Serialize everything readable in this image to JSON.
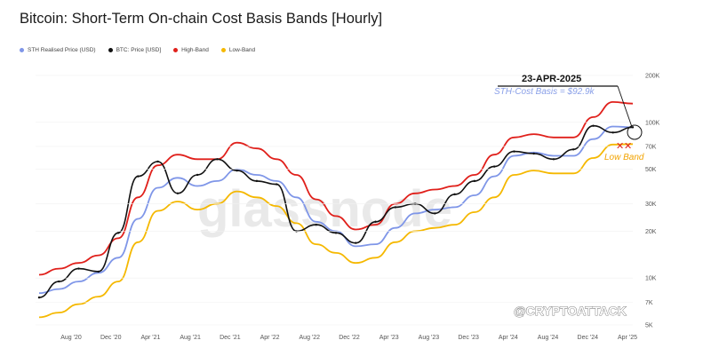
{
  "title": "Bitcoin: Short-Term On-chain Cost Basis Bands [Hourly]",
  "legend": [
    {
      "label": "STH Realised Price (USD)",
      "color": "#7f96e8"
    },
    {
      "label": "BTC: Price [USD]",
      "color": "#111111"
    },
    {
      "label": "High-Band",
      "color": "#e0201b"
    },
    {
      "label": "Low-Band",
      "color": "#f5b800"
    }
  ],
  "annotations": {
    "date": "23-APR-2025",
    "cost_basis": "STH-Cost Basis = $92.9k",
    "low_band": "Low Band",
    "watermark": "glassnode",
    "credit": "@CRYPTOATTACK"
  },
  "chart_data": {
    "type": "line",
    "yscale": "log",
    "ylim": [
      5000,
      200000
    ],
    "y_ticks": [
      {
        "label": "200K",
        "value": 200000
      },
      {
        "label": "100K",
        "value": 100000
      },
      {
        "label": "70K",
        "value": 70000
      },
      {
        "label": "50K",
        "value": 50000
      },
      {
        "label": "30K",
        "value": 30000
      },
      {
        "label": "20K",
        "value": 20000
      },
      {
        "label": "10K",
        "value": 10000
      },
      {
        "label": "7K",
        "value": 7000
      },
      {
        "label": "5K",
        "value": 5000
      }
    ],
    "x_ticks": [
      "Aug '20",
      "Dec '20",
      "Apr '21",
      "Aug '21",
      "Dec '21",
      "Apr '22",
      "Aug '22",
      "Dec '22",
      "Apr '23",
      "Aug '23",
      "Dec '23",
      "Apr '24",
      "Aug '24",
      "Dec '24",
      "Apr '25"
    ],
    "x": [
      "Apr '20",
      "Jun '20",
      "Aug '20",
      "Oct '20",
      "Dec '20",
      "Feb '21",
      "Apr '21",
      "Jun '21",
      "Aug '21",
      "Oct '21",
      "Dec '21",
      "Feb '22",
      "Apr '22",
      "Jun '22",
      "Aug '22",
      "Oct '22",
      "Dec '22",
      "Feb '23",
      "Apr '23",
      "Jun '23",
      "Aug '23",
      "Oct '23",
      "Dec '23",
      "Feb '24",
      "Apr '24",
      "Jun '24",
      "Aug '24",
      "Oct '24",
      "Dec '24",
      "Feb '25",
      "Apr '25"
    ],
    "series": [
      {
        "name": "High-Band",
        "color": "#e0201b",
        "values": [
          10500,
          11500,
          12500,
          14000,
          18000,
          33000,
          53000,
          62000,
          58000,
          58000,
          74000,
          68000,
          58000,
          46000,
          32000,
          25000,
          20500,
          22000,
          30000,
          35000,
          37000,
          39000,
          46000,
          62000,
          80000,
          84000,
          80000,
          80000,
          108000,
          135000,
          132000
        ]
      },
      {
        "name": "STH Realised Price (USD)",
        "color": "#7f96e8",
        "values": [
          8000,
          8500,
          9500,
          10800,
          13500,
          24000,
          38000,
          44000,
          39000,
          42000,
          50000,
          46000,
          42000,
          33000,
          23000,
          20000,
          16000,
          16500,
          21000,
          26000,
          27500,
          28500,
          34000,
          45000,
          61000,
          64000,
          61000,
          61000,
          78000,
          94000,
          92900
        ]
      },
      {
        "name": "BTC: Price [USD]",
        "color": "#111111",
        "values": [
          7500,
          9500,
          11500,
          11000,
          19500,
          45000,
          56000,
          35000,
          46000,
          58000,
          49000,
          42000,
          40000,
          20000,
          22000,
          19500,
          16800,
          23000,
          28500,
          30000,
          26000,
          34500,
          42000,
          52000,
          65000,
          63000,
          58000,
          67000,
          95000,
          86000,
          93000
        ]
      },
      {
        "name": "Low-Band",
        "color": "#f5b800",
        "values": [
          5600,
          6000,
          6800,
          7600,
          9500,
          17000,
          27000,
          31000,
          27500,
          30000,
          36000,
          33000,
          29000,
          22500,
          16500,
          14500,
          12500,
          13500,
          17000,
          20000,
          21000,
          22000,
          26500,
          33000,
          46000,
          49000,
          47000,
          47000,
          59000,
          72000,
          72500
        ]
      }
    ]
  }
}
